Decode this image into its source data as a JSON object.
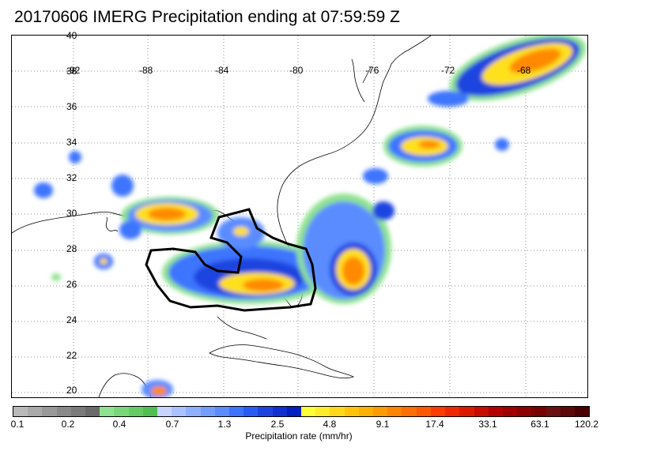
{
  "title": "20170606 IMERG Precipitation ending at 07:59:59 Z",
  "map": {
    "lat_labels": [
      "40",
      "38",
      "36",
      "34",
      "32",
      "30",
      "28",
      "26",
      "24",
      "22",
      "20"
    ],
    "lon_labels": [
      "-92",
      "-88",
      "-84",
      "-80",
      "-76",
      "-72",
      "-68"
    ],
    "grid": "dotted"
  },
  "colorbar": {
    "ticks": [
      "0.1",
      "0.2",
      "0.4",
      "0.7",
      "1.3",
      "2.5",
      "4.8",
      "9.1",
      "17.4",
      "33.1",
      "63.1",
      "120.2"
    ],
    "title": "Precipitation rate (mm/hr)",
    "colors": [
      "#b9b9b9",
      "#a9a9a9",
      "#999999",
      "#898989",
      "#7a7a7a",
      "#6a6a6a",
      "#8fe28f",
      "#78d878",
      "#63cc63",
      "#50bf50",
      "#c6d4ff",
      "#aac2ff",
      "#8eb0ff",
      "#729eff",
      "#5a8cff",
      "#3c74ff",
      "#2a5cf5",
      "#1d44e0",
      "#1030d0",
      "#0020c0",
      "#ffff3a",
      "#ffec2a",
      "#ffd81a",
      "#ffc40a",
      "#ffb000",
      "#ff9a00",
      "#ff8400",
      "#ff6e00",
      "#ff5800",
      "#ff3c00",
      "#f02800",
      "#dc1a00",
      "#c80c00",
      "#b40000",
      "#a00000",
      "#8c0000",
      "#780000",
      "#6a1010",
      "#5c0808",
      "#4a0000"
    ]
  },
  "colors": {
    "light_green": "#8fe28f",
    "blue": "#1d44e0",
    "light_blue": "#8eb0ff",
    "yellow": "#ffe01a",
    "orange": "#ff8a00",
    "red": "#ee3010",
    "outline": "#000000"
  }
}
